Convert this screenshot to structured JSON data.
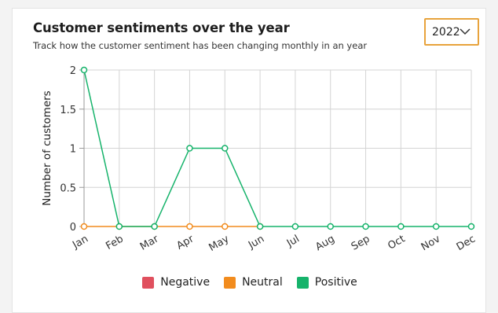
{
  "header": {
    "title": "Customer sentiments over the year",
    "subtitle": "Track how the customer sentiment has been changing monthly in an year"
  },
  "year_select": {
    "value": "2022"
  },
  "colors": {
    "negative": "#e0505e",
    "neutral": "#f28c1e",
    "positive": "#16b36b",
    "grid": "#d4d4d4",
    "select_border": "#e8a33c"
  },
  "chart_data": {
    "type": "line",
    "ylabel": "Number of customers",
    "xlabel": "",
    "categories": [
      "Jan",
      "Feb",
      "Mar",
      "Apr",
      "May",
      "Jun",
      "Jul",
      "Aug",
      "Sep",
      "Oct",
      "Nov",
      "Dec"
    ],
    "ylim": [
      0,
      2
    ],
    "yticks": [
      "0",
      "0.5",
      "1",
      "1.5",
      "2"
    ],
    "grid": true,
    "legend_position": "bottom",
    "series": [
      {
        "name": "Negative",
        "color": "#e0505e",
        "values": [
          null,
          null,
          null,
          null,
          null,
          null,
          null,
          null,
          null,
          null,
          null,
          null
        ]
      },
      {
        "name": "Neutral",
        "color": "#f28c1e",
        "values": [
          0,
          0,
          0,
          0,
          0,
          0,
          null,
          null,
          null,
          null,
          null,
          null
        ]
      },
      {
        "name": "Positive",
        "color": "#16b36b",
        "values": [
          2,
          0,
          0,
          1,
          1,
          0,
          0,
          0,
          0,
          0,
          0,
          0
        ]
      }
    ]
  }
}
